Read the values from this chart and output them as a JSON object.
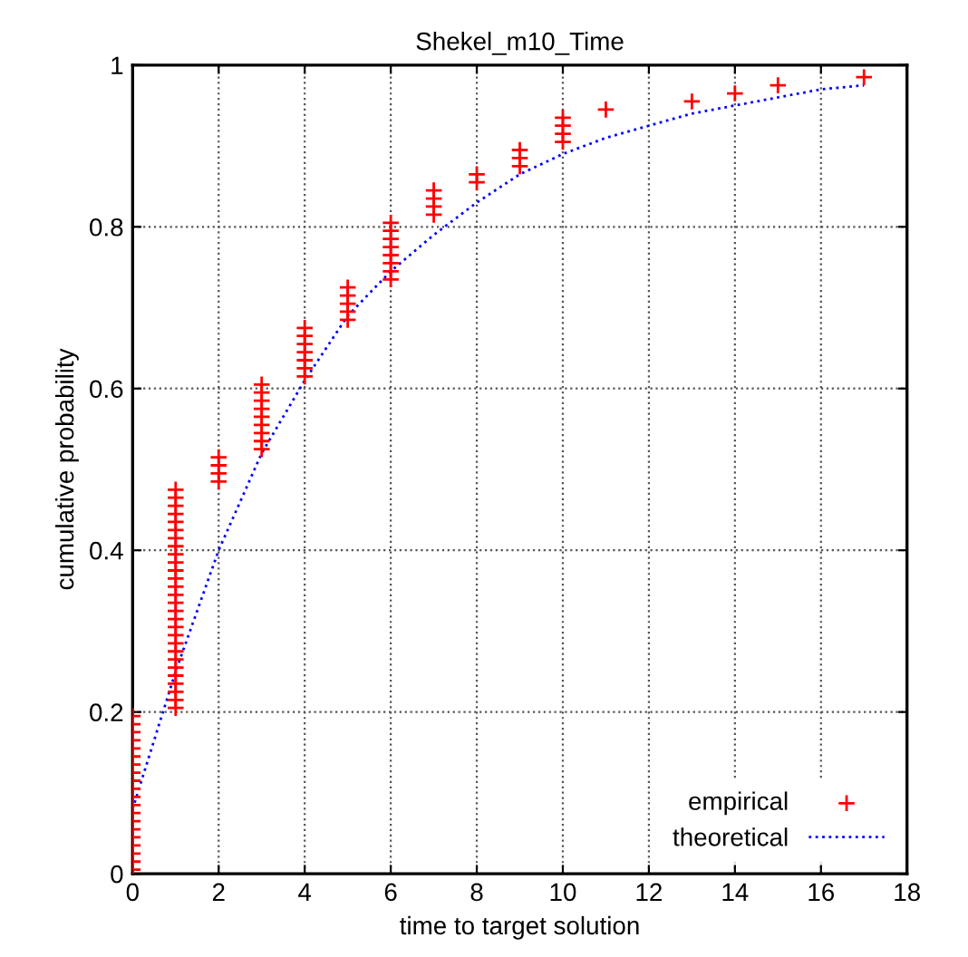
{
  "chart_data": {
    "type": "scatter",
    "title": "Shekel_m10_Time",
    "xlabel": "time to target solution",
    "ylabel": "cumulative probability",
    "xlim": [
      0,
      18
    ],
    "xticks": [
      0,
      2,
      4,
      6,
      8,
      10,
      12,
      14,
      16,
      18
    ],
    "ylim": [
      0,
      1
    ],
    "yticks": [
      0,
      0.2,
      0.4,
      0.6,
      0.8,
      1
    ],
    "grid": true,
    "legend": "bottom right",
    "series": [
      {
        "name": "empirical",
        "marker": "cross",
        "color": "#ff0000",
        "x": [
          0,
          0,
          0,
          0,
          0,
          0,
          0,
          0,
          0,
          0,
          0,
          0,
          0,
          0,
          0,
          0,
          0,
          0,
          0,
          0,
          1,
          1,
          1,
          1,
          1,
          1,
          1,
          1,
          1,
          1,
          1,
          1,
          1,
          1,
          1,
          1,
          1,
          1,
          1,
          1,
          1,
          1,
          1,
          1,
          1,
          1,
          1,
          1,
          2,
          2,
          2,
          2,
          3,
          3,
          3,
          3,
          3,
          3,
          3,
          3,
          3,
          4,
          4,
          4,
          4,
          4,
          4,
          4,
          5,
          5,
          5,
          5,
          5,
          6,
          6,
          6,
          6,
          6,
          6,
          6,
          6,
          7,
          7,
          7,
          7,
          8,
          8,
          9,
          9,
          9,
          10,
          10,
          10,
          10,
          11,
          13,
          14,
          15,
          17
        ],
        "values": [
          0.005,
          0.015,
          0.025,
          0.035,
          0.045,
          0.055,
          0.065,
          0.075,
          0.085,
          0.095,
          0.105,
          0.115,
          0.125,
          0.135,
          0.145,
          0.155,
          0.165,
          0.175,
          0.185,
          0.195,
          0.205,
          0.215,
          0.225,
          0.235,
          0.245,
          0.255,
          0.265,
          0.275,
          0.285,
          0.295,
          0.305,
          0.315,
          0.325,
          0.335,
          0.345,
          0.355,
          0.365,
          0.375,
          0.385,
          0.395,
          0.405,
          0.415,
          0.425,
          0.435,
          0.445,
          0.455,
          0.465,
          0.475,
          0.485,
          0.495,
          0.505,
          0.515,
          0.525,
          0.535,
          0.545,
          0.555,
          0.565,
          0.575,
          0.585,
          0.595,
          0.605,
          0.615,
          0.625,
          0.635,
          0.645,
          0.655,
          0.665,
          0.675,
          0.685,
          0.695,
          0.705,
          0.715,
          0.725,
          0.735,
          0.745,
          0.755,
          0.765,
          0.775,
          0.785,
          0.795,
          0.805,
          0.815,
          0.825,
          0.835,
          0.845,
          0.855,
          0.865,
          0.875,
          0.885,
          0.895,
          0.905,
          0.915,
          0.925,
          0.935,
          0.945,
          0.955,
          0.965,
          0.975,
          0.985
        ]
      },
      {
        "name": "theoretical",
        "type": "line",
        "line_style": "dotted",
        "color": "#0000ff",
        "x": [
          0,
          1,
          2,
          3,
          4,
          5,
          6,
          7,
          8,
          9,
          10,
          11,
          12,
          13,
          14,
          15,
          16,
          17
        ],
        "values": [
          0.08,
          0.25,
          0.4,
          0.52,
          0.61,
          0.69,
          0.745,
          0.79,
          0.83,
          0.865,
          0.89,
          0.91,
          0.925,
          0.94,
          0.95,
          0.96,
          0.97,
          0.975
        ]
      }
    ]
  }
}
